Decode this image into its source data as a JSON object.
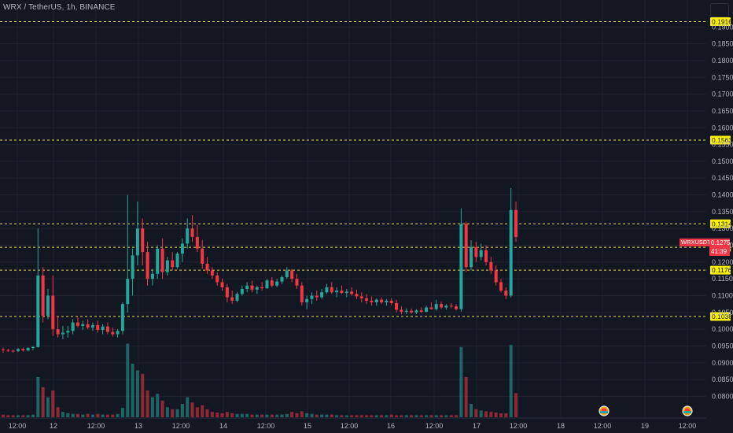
{
  "header": {
    "symbol_title": "WRX / TetherUS, 1h, BINANCE"
  },
  "ticker": {
    "symbol": "WRXUSDT",
    "price": "0.1275",
    "countdown": "41:39"
  },
  "colors": {
    "background": "#131722",
    "up": "#26a69a",
    "down": "#f23645",
    "level_line": "#f0d84a",
    "level_label_bg": "#fff200",
    "grid": "#1e222d"
  },
  "chart_data": {
    "type": "candlestick",
    "y_axis": {
      "range": [
        0.078,
        0.195
      ],
      "ticks": [
        "0.1900",
        "0.1850",
        "0.1800",
        "0.1750",
        "0.1700",
        "0.1650",
        "0.1600",
        "0.1550",
        "0.1500",
        "0.1450",
        "0.1400",
        "0.1350",
        "0.1300",
        "0.1250",
        "0.1200",
        "0.1150",
        "0.1100",
        "0.1050",
        "0.1000",
        "0.0950",
        "0.0900",
        "0.0850",
        "0.0800"
      ]
    },
    "x_axis": {
      "ticks": [
        "12:00",
        "12",
        "12:00",
        "13",
        "12:00",
        "14",
        "12:00",
        "15",
        "12:00",
        "16",
        "12:00",
        "17",
        "12:00",
        "18",
        "12:00",
        "19",
        "12:00"
      ]
    },
    "levels": [
      "0.1916",
      "0.1563",
      "0.1314",
      "0.1244",
      "0.1176",
      "0.1038"
    ],
    "event_markers": 2,
    "series": [
      {
        "o": 0.094,
        "h": 0.0945,
        "l": 0.093,
        "c": 0.0938
      },
      {
        "o": 0.0938,
        "h": 0.0942,
        "l": 0.0932,
        "c": 0.0936
      },
      {
        "o": 0.0936,
        "h": 0.094,
        "l": 0.093,
        "c": 0.0935
      },
      {
        "o": 0.0935,
        "h": 0.0944,
        "l": 0.0932,
        "c": 0.0941
      },
      {
        "o": 0.0941,
        "h": 0.0945,
        "l": 0.0933,
        "c": 0.0937
      },
      {
        "o": 0.0937,
        "h": 0.0946,
        "l": 0.0934,
        "c": 0.0944
      },
      {
        "o": 0.0944,
        "h": 0.095,
        "l": 0.0938,
        "c": 0.0947
      },
      {
        "o": 0.0947,
        "h": 0.13,
        "l": 0.0945,
        "c": 0.116
      },
      {
        "o": 0.116,
        "h": 0.1185,
        "l": 0.102,
        "c": 0.104
      },
      {
        "o": 0.104,
        "h": 0.112,
        "l": 0.103,
        "c": 0.11
      },
      {
        "o": 0.11,
        "h": 0.116,
        "l": 0.098,
        "c": 0.1
      },
      {
        "o": 0.1,
        "h": 0.104,
        "l": 0.0975,
        "c": 0.0985
      },
      {
        "o": 0.0985,
        "h": 0.101,
        "l": 0.097,
        "c": 0.099
      },
      {
        "o": 0.099,
        "h": 0.101,
        "l": 0.0975,
        "c": 0.0995
      },
      {
        "o": 0.0995,
        "h": 0.103,
        "l": 0.0985,
        "c": 0.102
      },
      {
        "o": 0.102,
        "h": 0.1035,
        "l": 0.1005,
        "c": 0.101
      },
      {
        "o": 0.101,
        "h": 0.1025,
        "l": 0.0998,
        "c": 0.1015
      },
      {
        "o": 0.1015,
        "h": 0.103,
        "l": 0.1,
        "c": 0.1005
      },
      {
        "o": 0.1005,
        "h": 0.102,
        "l": 0.0995,
        "c": 0.1012
      },
      {
        "o": 0.1012,
        "h": 0.1025,
        "l": 0.099,
        "c": 0.0998
      },
      {
        "o": 0.0998,
        "h": 0.1015,
        "l": 0.0985,
        "c": 0.1008
      },
      {
        "o": 0.1008,
        "h": 0.102,
        "l": 0.0985,
        "c": 0.0992
      },
      {
        "o": 0.0992,
        "h": 0.1005,
        "l": 0.0978,
        "c": 0.0985
      },
      {
        "o": 0.0985,
        "h": 0.1,
        "l": 0.0975,
        "c": 0.0995
      },
      {
        "o": 0.0995,
        "h": 0.108,
        "l": 0.0985,
        "c": 0.1075
      },
      {
        "o": 0.1075,
        "h": 0.14,
        "l": 0.105,
        "c": 0.115
      },
      {
        "o": 0.115,
        "h": 0.124,
        "l": 0.11,
        "c": 0.122
      },
      {
        "o": 0.122,
        "h": 0.138,
        "l": 0.119,
        "c": 0.13
      },
      {
        "o": 0.13,
        "h": 0.133,
        "l": 0.119,
        "c": 0.123
      },
      {
        "o": 0.123,
        "h": 0.126,
        "l": 0.113,
        "c": 0.115
      },
      {
        "o": 0.115,
        "h": 0.118,
        "l": 0.113,
        "c": 0.1165
      },
      {
        "o": 0.1165,
        "h": 0.125,
        "l": 0.115,
        "c": 0.124
      },
      {
        "o": 0.124,
        "h": 0.127,
        "l": 0.115,
        "c": 0.117
      },
      {
        "o": 0.117,
        "h": 0.1215,
        "l": 0.116,
        "c": 0.1205
      },
      {
        "o": 0.1205,
        "h": 0.123,
        "l": 0.1175,
        "c": 0.1185
      },
      {
        "o": 0.1185,
        "h": 0.123,
        "l": 0.118,
        "c": 0.1225
      },
      {
        "o": 0.1225,
        "h": 0.127,
        "l": 0.12,
        "c": 0.1255
      },
      {
        "o": 0.1255,
        "h": 0.133,
        "l": 0.124,
        "c": 0.13
      },
      {
        "o": 0.13,
        "h": 0.134,
        "l": 0.126,
        "c": 0.1275
      },
      {
        "o": 0.1275,
        "h": 0.131,
        "l": 0.123,
        "c": 0.124
      },
      {
        "o": 0.124,
        "h": 0.1265,
        "l": 0.118,
        "c": 0.1195
      },
      {
        "o": 0.1195,
        "h": 0.1215,
        "l": 0.1165,
        "c": 0.1175
      },
      {
        "o": 0.1175,
        "h": 0.1185,
        "l": 0.115,
        "c": 0.116
      },
      {
        "o": 0.116,
        "h": 0.117,
        "l": 0.113,
        "c": 0.114
      },
      {
        "o": 0.114,
        "h": 0.115,
        "l": 0.1115,
        "c": 0.1125
      },
      {
        "o": 0.1125,
        "h": 0.1135,
        "l": 0.108,
        "c": 0.1095
      },
      {
        "o": 0.1095,
        "h": 0.1115,
        "l": 0.1075,
        "c": 0.1085
      },
      {
        "o": 0.1085,
        "h": 0.111,
        "l": 0.108,
        "c": 0.1105
      },
      {
        "o": 0.1105,
        "h": 0.113,
        "l": 0.11,
        "c": 0.112
      },
      {
        "o": 0.112,
        "h": 0.114,
        "l": 0.111,
        "c": 0.113
      },
      {
        "o": 0.113,
        "h": 0.1145,
        "l": 0.111,
        "c": 0.1118
      },
      {
        "o": 0.1118,
        "h": 0.113,
        "l": 0.1105,
        "c": 0.1125
      },
      {
        "o": 0.1125,
        "h": 0.114,
        "l": 0.1115,
        "c": 0.1122
      },
      {
        "o": 0.1122,
        "h": 0.115,
        "l": 0.112,
        "c": 0.1145
      },
      {
        "o": 0.1145,
        "h": 0.1155,
        "l": 0.1125,
        "c": 0.113
      },
      {
        "o": 0.113,
        "h": 0.115,
        "l": 0.1125,
        "c": 0.1142
      },
      {
        "o": 0.1142,
        "h": 0.116,
        "l": 0.1135,
        "c": 0.1155
      },
      {
        "o": 0.1155,
        "h": 0.1185,
        "l": 0.115,
        "c": 0.1175
      },
      {
        "o": 0.1175,
        "h": 0.118,
        "l": 0.114,
        "c": 0.115
      },
      {
        "o": 0.115,
        "h": 0.1165,
        "l": 0.112,
        "c": 0.113
      },
      {
        "o": 0.113,
        "h": 0.114,
        "l": 0.107,
        "c": 0.108
      },
      {
        "o": 0.108,
        "h": 0.11,
        "l": 0.106,
        "c": 0.109
      },
      {
        "o": 0.109,
        "h": 0.111,
        "l": 0.1075,
        "c": 0.11
      },
      {
        "o": 0.11,
        "h": 0.1115,
        "l": 0.1085,
        "c": 0.1095
      },
      {
        "o": 0.1095,
        "h": 0.112,
        "l": 0.109,
        "c": 0.111
      },
      {
        "o": 0.111,
        "h": 0.1135,
        "l": 0.1105,
        "c": 0.1125
      },
      {
        "o": 0.1125,
        "h": 0.114,
        "l": 0.1105,
        "c": 0.111
      },
      {
        "o": 0.111,
        "h": 0.1125,
        "l": 0.1095,
        "c": 0.1115
      },
      {
        "o": 0.1115,
        "h": 0.113,
        "l": 0.1105,
        "c": 0.1108
      },
      {
        "o": 0.1108,
        "h": 0.112,
        "l": 0.1095,
        "c": 0.1112
      },
      {
        "o": 0.1112,
        "h": 0.1125,
        "l": 0.11,
        "c": 0.1105
      },
      {
        "o": 0.1105,
        "h": 0.1118,
        "l": 0.109,
        "c": 0.1098
      },
      {
        "o": 0.1098,
        "h": 0.111,
        "l": 0.108,
        "c": 0.1092
      },
      {
        "o": 0.1092,
        "h": 0.1105,
        "l": 0.1075,
        "c": 0.1085
      },
      {
        "o": 0.1085,
        "h": 0.1098,
        "l": 0.107,
        "c": 0.108
      },
      {
        "o": 0.108,
        "h": 0.1092,
        "l": 0.107,
        "c": 0.1088
      },
      {
        "o": 0.1088,
        "h": 0.1095,
        "l": 0.1075,
        "c": 0.108
      },
      {
        "o": 0.108,
        "h": 0.109,
        "l": 0.107,
        "c": 0.1085
      },
      {
        "o": 0.1085,
        "h": 0.1092,
        "l": 0.1072,
        "c": 0.1078
      },
      {
        "o": 0.1078,
        "h": 0.1088,
        "l": 0.105,
        "c": 0.1058
      },
      {
        "o": 0.1058,
        "h": 0.1068,
        "l": 0.1045,
        "c": 0.1052
      },
      {
        "o": 0.1052,
        "h": 0.1062,
        "l": 0.1045,
        "c": 0.1055
      },
      {
        "o": 0.1055,
        "h": 0.1062,
        "l": 0.1046,
        "c": 0.105
      },
      {
        "o": 0.105,
        "h": 0.106,
        "l": 0.1045,
        "c": 0.1056
      },
      {
        "o": 0.1056,
        "h": 0.1065,
        "l": 0.1048,
        "c": 0.1052
      },
      {
        "o": 0.1052,
        "h": 0.107,
        "l": 0.105,
        "c": 0.1065
      },
      {
        "o": 0.1065,
        "h": 0.108,
        "l": 0.1058,
        "c": 0.106
      },
      {
        "o": 0.106,
        "h": 0.1088,
        "l": 0.1055,
        "c": 0.1075
      },
      {
        "o": 0.1075,
        "h": 0.1082,
        "l": 0.106,
        "c": 0.1065
      },
      {
        "o": 0.1065,
        "h": 0.1075,
        "l": 0.1058,
        "c": 0.107
      },
      {
        "o": 0.107,
        "h": 0.1078,
        "l": 0.1062,
        "c": 0.1068
      },
      {
        "o": 0.1068,
        "h": 0.1075,
        "l": 0.1055,
        "c": 0.106
      },
      {
        "o": 0.106,
        "h": 0.136,
        "l": 0.1052,
        "c": 0.1314
      },
      {
        "o": 0.1314,
        "h": 0.132,
        "l": 0.117,
        "c": 0.1185
      },
      {
        "o": 0.1185,
        "h": 0.1265,
        "l": 0.1175,
        "c": 0.1245
      },
      {
        "o": 0.1245,
        "h": 0.126,
        "l": 0.12,
        "c": 0.1215
      },
      {
        "o": 0.1215,
        "h": 0.1255,
        "l": 0.1205,
        "c": 0.1235
      },
      {
        "o": 0.1235,
        "h": 0.125,
        "l": 0.119,
        "c": 0.12
      },
      {
        "o": 0.12,
        "h": 0.1215,
        "l": 0.1165,
        "c": 0.1175
      },
      {
        "o": 0.1175,
        "h": 0.119,
        "l": 0.113,
        "c": 0.114
      },
      {
        "o": 0.114,
        "h": 0.115,
        "l": 0.111,
        "c": 0.1115
      },
      {
        "o": 0.1115,
        "h": 0.1125,
        "l": 0.109,
        "c": 0.11
      },
      {
        "o": 0.11,
        "h": 0.142,
        "l": 0.1095,
        "c": 0.1355
      },
      {
        "o": 0.1355,
        "h": 0.138,
        "l": 0.126,
        "c": 0.1275
      }
    ],
    "volume": [
      0.4,
      0.3,
      0.3,
      0.3,
      0.3,
      0.3,
      0.4,
      6.0,
      4.5,
      3.0,
      4.0,
      1.5,
      0.8,
      0.6,
      0.5,
      0.5,
      0.4,
      0.5,
      0.4,
      0.5,
      0.4,
      0.4,
      0.4,
      0.5,
      1.4,
      11.0,
      8.0,
      7.0,
      6.5,
      4.0,
      3.0,
      3.5,
      2.5,
      1.5,
      1.2,
      1.2,
      2.0,
      3.0,
      2.2,
      1.5,
      1.8,
      1.2,
      0.8,
      0.7,
      0.6,
      0.8,
      0.6,
      0.5,
      0.5,
      0.5,
      0.4,
      0.4,
      0.4,
      0.4,
      0.4,
      0.4,
      0.4,
      0.5,
      0.8,
      0.6,
      0.9,
      0.6,
      0.5,
      0.4,
      0.4,
      0.4,
      0.4,
      0.3,
      0.3,
      0.3,
      0.3,
      0.3,
      0.3,
      0.3,
      0.3,
      0.3,
      0.3,
      0.3,
      0.4,
      0.3,
      0.3,
      0.3,
      0.3,
      0.3,
      0.3,
      0.3,
      0.3,
      0.3,
      0.3,
      0.3,
      0.3,
      0.3,
      10.5,
      6.0,
      2.0,
      1.2,
      1.0,
      0.9,
      0.8,
      0.7,
      0.6,
      0.6,
      10.8,
      3.6
    ]
  }
}
